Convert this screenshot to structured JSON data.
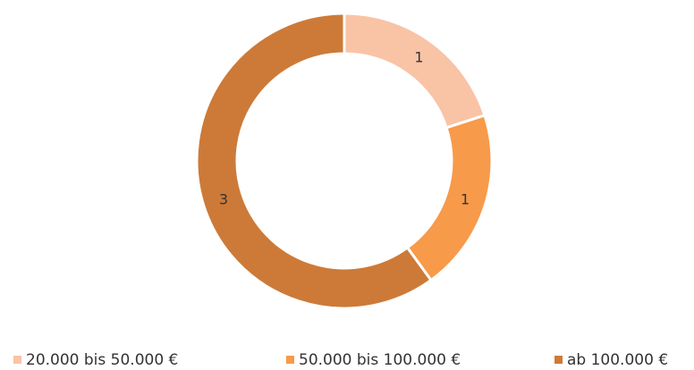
{
  "chart_data": {
    "type": "donut",
    "categories": [
      "20.000 bis 50.000 €",
      "50.000 bis 100.000 €",
      "ab 100.000 €"
    ],
    "values": [
      1,
      1,
      3
    ],
    "colors": [
      "#f9c3a6",
      "#f79a4a",
      "#cd7a38"
    ],
    "legend": "bottom"
  }
}
